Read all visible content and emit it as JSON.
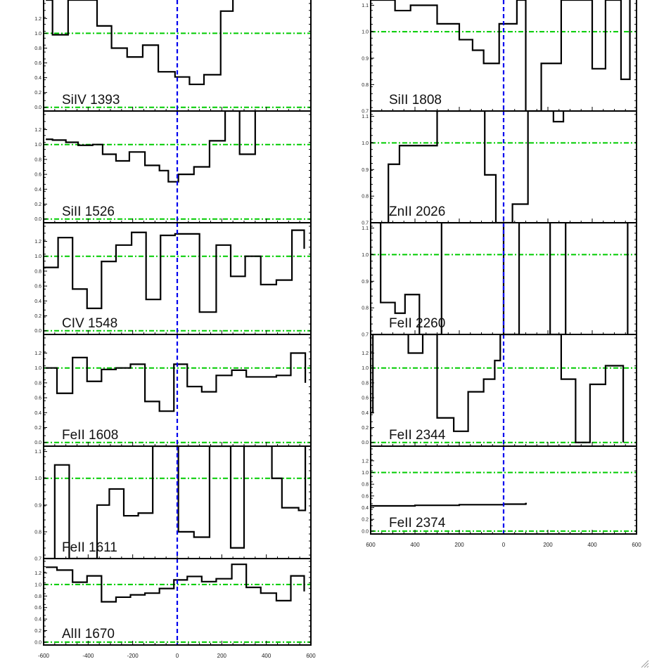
{
  "colors": {
    "frame": "#000000",
    "continuum": "#00cc00",
    "zero_velocity": "#0000ee",
    "spectrum": "#000000"
  },
  "chart_data": [
    {
      "type": "line",
      "label": "SiIV 1393",
      "xlim": [
        -600,
        600
      ],
      "ylim": [
        -0.05,
        1.45
      ],
      "yticks": [
        0.0,
        0.2,
        0.4,
        0.6,
        0.8,
        1.0,
        1.2
      ],
      "ytick_labels": [
        "0.0",
        "0.2",
        "0.4",
        "0.6",
        "0.8",
        "1.0",
        "1.2"
      ],
      "steps": [
        [
          -590,
          1.45
        ],
        [
          -560,
          0.98
        ],
        [
          -490,
          1.45
        ],
        [
          -360,
          1.1
        ],
        [
          -295,
          0.8
        ],
        [
          -225,
          0.68
        ],
        [
          -155,
          0.84
        ],
        [
          -85,
          0.48
        ],
        [
          -10,
          0.41
        ],
        [
          55,
          0.31
        ],
        [
          120,
          0.44
        ],
        [
          195,
          1.3
        ],
        [
          250,
          1.45
        ]
      ]
    },
    {
      "type": "line",
      "label": "SiII 1526",
      "xlim": [
        -600,
        600
      ],
      "ylim": [
        -0.05,
        1.45
      ],
      "yticks": [
        0.0,
        0.2,
        0.4,
        0.6,
        0.8,
        1.0,
        1.2
      ],
      "ytick_labels": [
        "0.0",
        "0.2",
        "0.4",
        "0.6",
        "0.8",
        "1.0",
        "1.2"
      ],
      "steps": [
        [
          -590,
          1.07
        ],
        [
          -560,
          1.06
        ],
        [
          -500,
          1.03
        ],
        [
          -445,
          0.99
        ],
        [
          -380,
          1.0
        ],
        [
          -335,
          0.87
        ],
        [
          -275,
          0.78
        ],
        [
          -215,
          0.9
        ],
        [
          -145,
          0.72
        ],
        [
          -80,
          0.65
        ],
        [
          -40,
          0.5
        ],
        [
          5,
          0.6
        ],
        [
          75,
          0.7
        ],
        [
          145,
          1.05
        ],
        [
          215,
          1.45
        ],
        [
          280,
          0.87
        ],
        [
          350,
          1.45
        ]
      ]
    },
    {
      "type": "line",
      "label": "CIV 1548",
      "xlim": [
        -600,
        600
      ],
      "ylim": [
        -0.05,
        1.45
      ],
      "yticks": [
        0.0,
        0.2,
        0.4,
        0.6,
        0.8,
        1.0,
        1.2
      ],
      "ytick_labels": [
        "0.0",
        "0.2",
        "0.4",
        "0.6",
        "0.8",
        "1.0",
        "1.2"
      ],
      "steps": [
        [
          -600,
          0.85
        ],
        [
          -535,
          1.25
        ],
        [
          -470,
          0.56
        ],
        [
          -405,
          0.3
        ],
        [
          -340,
          0.93
        ],
        [
          -275,
          1.15
        ],
        [
          -205,
          1.32
        ],
        [
          -140,
          0.42
        ],
        [
          -75,
          1.28
        ],
        [
          -10,
          1.3
        ],
        [
          100,
          0.25
        ],
        [
          175,
          1.15
        ],
        [
          240,
          0.73
        ],
        [
          305,
          1.0
        ],
        [
          375,
          0.62
        ],
        [
          445,
          0.68
        ],
        [
          515,
          1.35
        ],
        [
          570,
          1.1
        ]
      ]
    },
    {
      "type": "line",
      "label": "FeII 1608",
      "xlim": [
        -600,
        600
      ],
      "ylim": [
        -0.05,
        1.45
      ],
      "yticks": [
        0.0,
        0.2,
        0.4,
        0.6,
        0.8,
        1.0,
        1.2
      ],
      "ytick_labels": [
        "0.0",
        "0.2",
        "0.4",
        "0.6",
        "0.8",
        "1.0",
        "1.2"
      ],
      "steps": [
        [
          -590,
          1.0
        ],
        [
          -540,
          0.66
        ],
        [
          -470,
          1.14
        ],
        [
          -405,
          0.82
        ],
        [
          -340,
          0.98
        ],
        [
          -275,
          1.0
        ],
        [
          -210,
          1.05
        ],
        [
          -145,
          0.55
        ],
        [
          -80,
          0.42
        ],
        [
          -15,
          1.05
        ],
        [
          45,
          0.75
        ],
        [
          110,
          0.68
        ],
        [
          175,
          0.9
        ],
        [
          245,
          0.97
        ],
        [
          310,
          0.88
        ],
        [
          375,
          0.88
        ],
        [
          445,
          0.9
        ],
        [
          510,
          1.2
        ],
        [
          575,
          0.8
        ]
      ]
    },
    {
      "type": "line",
      "label": "FeII 1611",
      "xlim": [
        -600,
        600
      ],
      "ylim": [
        0.7,
        1.12
      ],
      "yticks": [
        0.7,
        0.8,
        0.9,
        1.0,
        1.1
      ],
      "ytick_labels": [
        "0.7",
        "0.8",
        "0.9",
        "1.0",
        "1.1"
      ],
      "steps": [
        [
          -600,
          0.7
        ],
        [
          -550,
          1.05
        ],
        [
          -485,
          0.7
        ],
        [
          -360,
          0.9
        ],
        [
          -305,
          0.96
        ],
        [
          -240,
          0.86
        ],
        [
          -175,
          0.87
        ],
        [
          -110,
          1.12
        ],
        [
          -65,
          1.12
        ],
        [
          5,
          0.8
        ],
        [
          75,
          0.78
        ],
        [
          145,
          1.12
        ],
        [
          205,
          1.12
        ],
        [
          240,
          0.74
        ],
        [
          300,
          1.12
        ],
        [
          425,
          1.0
        ],
        [
          470,
          0.89
        ],
        [
          545,
          0.88
        ],
        [
          575,
          1.12
        ]
      ]
    },
    {
      "type": "line",
      "label": "AlII 1670",
      "xlim": [
        -600,
        600
      ],
      "ylim": [
        -0.05,
        1.45
      ],
      "yticks": [
        0.0,
        0.2,
        0.4,
        0.6,
        0.8,
        1.0,
        1.2
      ],
      "ytick_labels": [
        "0.0",
        "0.2",
        "0.4",
        "0.6",
        "0.8",
        "1.0",
        "1.2"
      ],
      "steps": [
        [
          -590,
          1.3
        ],
        [
          -540,
          1.25
        ],
        [
          -470,
          1.04
        ],
        [
          -405,
          1.15
        ],
        [
          -340,
          0.7
        ],
        [
          -275,
          0.78
        ],
        [
          -210,
          0.82
        ],
        [
          -145,
          0.85
        ],
        [
          -80,
          0.93
        ],
        [
          -15,
          1.08
        ],
        [
          45,
          1.14
        ],
        [
          110,
          1.05
        ],
        [
          175,
          1.1
        ],
        [
          245,
          1.35
        ],
        [
          310,
          0.95
        ],
        [
          375,
          0.85
        ],
        [
          445,
          0.72
        ],
        [
          510,
          1.15
        ],
        [
          570,
          0.88
        ]
      ]
    },
    {
      "type": "line",
      "label": "SiII 1808",
      "xlim": [
        -600,
        600
      ],
      "ylim": [
        0.7,
        1.12
      ],
      "yticks": [
        0.7,
        0.8,
        0.9,
        1.0,
        1.1
      ],
      "ytick_labels": [
        "0.7",
        "0.8",
        "0.9",
        "1.0",
        "1.1"
      ],
      "steps": [
        [
          -600,
          1.12
        ],
        [
          -590,
          1.12
        ],
        [
          -490,
          1.08
        ],
        [
          -420,
          1.1
        ],
        [
          -300,
          1.03
        ],
        [
          -200,
          0.97
        ],
        [
          -140,
          0.93
        ],
        [
          -90,
          0.88
        ],
        [
          -20,
          1.03
        ],
        [
          60,
          1.12
        ],
        [
          100,
          0.7
        ],
        [
          150,
          0.7
        ],
        [
          170,
          0.88
        ],
        [
          260,
          1.12
        ],
        [
          400,
          0.86
        ],
        [
          460,
          1.12
        ],
        [
          530,
          0.82
        ],
        [
          570,
          1.12
        ]
      ]
    },
    {
      "type": "line",
      "label": "ZnII 2026",
      "xlim": [
        -600,
        600
      ],
      "ylim": [
        0.7,
        1.12
      ],
      "yticks": [
        0.7,
        0.8,
        0.9,
        1.0,
        1.1
      ],
      "ytick_labels": [
        "0.7",
        "0.8",
        "0.9",
        "1.0",
        "1.1"
      ],
      "steps": [
        [
          -545,
          0.7
        ],
        [
          -520,
          0.92
        ],
        [
          -470,
          0.99
        ],
        [
          -300,
          1.12
        ],
        [
          -140,
          1.12
        ],
        [
          -85,
          0.88
        ],
        [
          -35,
          0.7
        ],
        [
          40,
          0.77
        ],
        [
          110,
          1.12
        ],
        [
          200,
          1.12
        ],
        [
          225,
          1.08
        ],
        [
          270,
          1.12
        ]
      ]
    },
    {
      "type": "line",
      "label": "FeII 2260",
      "xlim": [
        -600,
        600
      ],
      "ylim": [
        0.7,
        1.12
      ],
      "yticks": [
        0.7,
        0.8,
        0.9,
        1.0,
        1.1
      ],
      "ytick_labels": [
        "0.7",
        "0.8",
        "0.9",
        "1.0",
        "1.1"
      ],
      "steps": [
        [
          -565,
          1.12
        ],
        [
          -555,
          0.82
        ],
        [
          -490,
          0.78
        ],
        [
          -445,
          0.85
        ],
        [
          -380,
          0.7
        ],
        [
          -280,
          1.12
        ],
        [
          -260,
          1.12
        ],
        [
          -140,
          1.12
        ],
        [
          -120,
          1.12
        ],
        [
          0,
          0.7
        ],
        [
          20,
          0.7
        ],
        [
          70,
          1.12
        ],
        [
          80,
          1.12
        ],
        [
          210,
          0.7
        ],
        [
          280,
          1.12
        ],
        [
          560,
          0.7
        ]
      ]
    },
    {
      "type": "line",
      "label": "FeII 2344",
      "xlim": [
        -600,
        600
      ],
      "ylim": [
        -0.05,
        1.45
      ],
      "yticks": [
        0.0,
        0.2,
        0.4,
        0.6,
        0.8,
        1.0,
        1.2
      ],
      "ytick_labels": [
        "0.0",
        "0.2",
        "0.4",
        "0.6",
        "0.8",
        "1.0",
        "1.2"
      ],
      "steps": [
        [
          -600,
          0.4
        ],
        [
          -590,
          1.45
        ],
        [
          -430,
          1.2
        ],
        [
          -365,
          1.45
        ],
        [
          -300,
          0.33
        ],
        [
          -225,
          0.15
        ],
        [
          -160,
          0.68
        ],
        [
          -90,
          0.85
        ],
        [
          -40,
          1.1
        ],
        [
          -15,
          1.45
        ],
        [
          260,
          0.85
        ],
        [
          325,
          0.0
        ],
        [
          390,
          0.78
        ],
        [
          460,
          1.03
        ],
        [
          540,
          0.0
        ]
      ]
    },
    {
      "type": "line",
      "label": "FeII 2374",
      "xlim": [
        -600,
        600
      ],
      "ylim": [
        -0.05,
        1.45
      ],
      "yticks": [
        0.0,
        0.2,
        0.4,
        0.6,
        0.8,
        1.0,
        1.2
      ],
      "ytick_labels": [
        "0.0",
        "0.2",
        "0.4",
        "0.6",
        "0.8",
        "1.0",
        "1.2"
      ],
      "steps": [
        [
          -600,
          0.43
        ],
        [
          -400,
          0.44
        ],
        [
          -200,
          0.45
        ],
        [
          0,
          0.46
        ],
        [
          100,
          0.47
        ],
        [
          105,
          0.47
        ]
      ]
    }
  ],
  "axis": {
    "xticks": [
      -600,
      -400,
      -200,
      0,
      200,
      400,
      600
    ],
    "left_xtick_labels": [
      "-600",
      "-400",
      "-200",
      "0",
      "200",
      "400",
      "600"
    ],
    "right_xtick_labels": [
      "600",
      "400",
      "200",
      "0",
      "200",
      "400",
      "600"
    ]
  }
}
